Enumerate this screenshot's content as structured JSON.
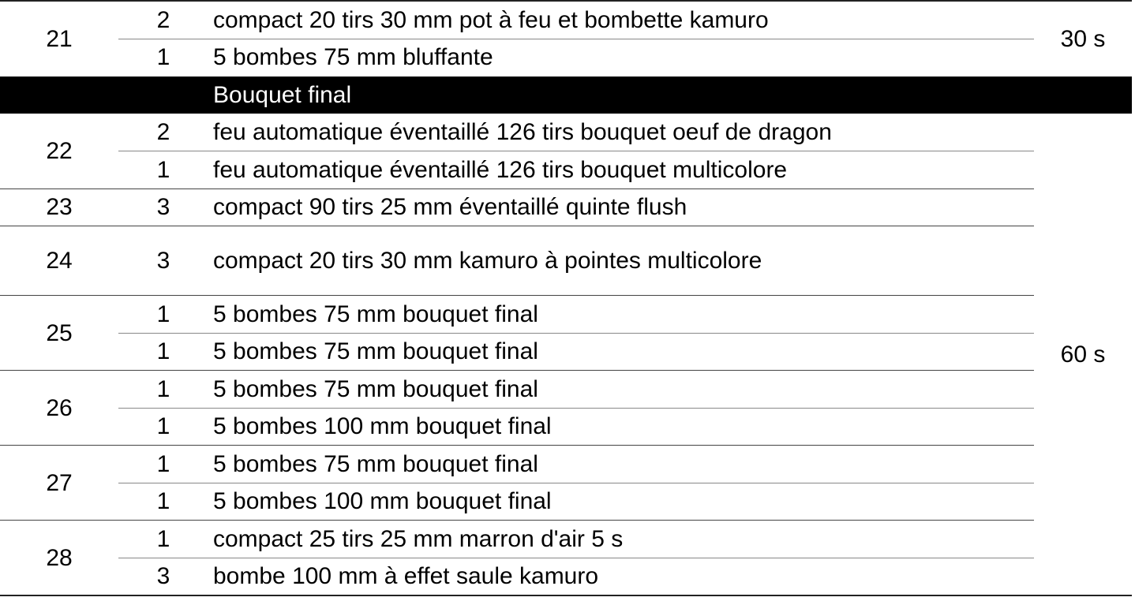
{
  "groups": [
    {
      "number": "21",
      "items": [
        {
          "qty": "2",
          "desc": "compact 20 tirs 30 mm pot à feu et bombette kamuro"
        },
        {
          "qty": "1",
          "desc": "5 bombes 75 mm bluffante"
        }
      ]
    },
    {
      "section": "Bouquet final"
    },
    {
      "number": "22",
      "items": [
        {
          "qty": "2",
          "desc": "feu automatique éventaillé 126 tirs bouquet oeuf de dragon"
        },
        {
          "qty": "1",
          "desc": "feu automatique éventaillé 126 tirs bouquet multicolore"
        }
      ]
    },
    {
      "number": "23",
      "items": [
        {
          "qty": "3",
          "desc": "compact 90 tirs 25 mm éventaillé quinte flush"
        }
      ]
    },
    {
      "number": "24",
      "items": [
        {
          "qty": "3",
          "desc": "compact 20 tirs 30 mm kamuro à pointes multicolore"
        }
      ]
    },
    {
      "number": "25",
      "items": [
        {
          "qty": "1",
          "desc": "5 bombes 75 mm bouquet final"
        },
        {
          "qty": "1",
          "desc": "5 bombes 75 mm bouquet final"
        }
      ]
    },
    {
      "number": "26",
      "items": [
        {
          "qty": "1",
          "desc": "5 bombes 75 mm bouquet final"
        },
        {
          "qty": "1",
          "desc": "5 bombes 100 mm bouquet final"
        }
      ]
    },
    {
      "number": "27",
      "items": [
        {
          "qty": "1",
          "desc": "5 bombes 75 mm bouquet final"
        },
        {
          "qty": "1",
          "desc": "5 bombes 100 mm bouquet final"
        }
      ]
    },
    {
      "number": "28",
      "items": [
        {
          "qty": "1",
          "desc": "compact 25 tirs 25 mm marron d'air 5 s"
        },
        {
          "qty": "3",
          "desc": "bombe 100 mm à effet saule kamuro"
        }
      ]
    }
  ],
  "durations": [
    "30 s",
    "60 s"
  ]
}
